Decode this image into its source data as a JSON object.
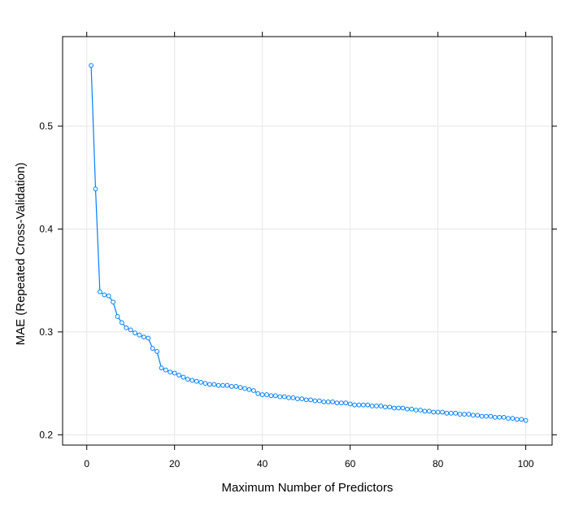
{
  "chart_data": {
    "type": "line",
    "title": "",
    "xlabel": "Maximum Number of Predictors",
    "ylabel": "MAE (Repeated Cross-Validation)",
    "xlim": [
      -5.5,
      106
    ],
    "ylim": [
      0.19,
      0.587
    ],
    "x_ticks": [
      0,
      20,
      40,
      60,
      80,
      100
    ],
    "x_tick_labels": [
      "0",
      "20",
      "40",
      "60",
      "80",
      "100"
    ],
    "y_ticks": [
      0.2,
      0.3,
      0.4,
      0.5
    ],
    "y_tick_labels": [
      "0.2",
      "0.3",
      "0.4",
      "0.5"
    ],
    "grid": true,
    "marker": "open-circle",
    "colors": {
      "line": "#0080ff",
      "marker": "#0080ff",
      "grid": "#e6e6e6",
      "frame": "#000000"
    },
    "series": [
      {
        "x": [
          1,
          2,
          3,
          4,
          5,
          6,
          7,
          8,
          9,
          10,
          11,
          12,
          13,
          14,
          15,
          16,
          17,
          18,
          19,
          20,
          21,
          22,
          23,
          24,
          25,
          26,
          27,
          28,
          29,
          30,
          31,
          32,
          33,
          34,
          35,
          36,
          37,
          38,
          39,
          40,
          41,
          42,
          43,
          44,
          45,
          46,
          47,
          48,
          49,
          50,
          51,
          52,
          53,
          54,
          55,
          56,
          57,
          58,
          59,
          60,
          61,
          62,
          63,
          64,
          65,
          66,
          67,
          68,
          69,
          70,
          71,
          72,
          73,
          74,
          75,
          76,
          77,
          78,
          79,
          80,
          81,
          82,
          83,
          84,
          85,
          86,
          87,
          88,
          89,
          90,
          91,
          92,
          93,
          94,
          95,
          96,
          97,
          98,
          99,
          100
        ],
        "values": [
          0.559,
          0.439,
          0.339,
          0.336,
          0.335,
          0.329,
          0.315,
          0.309,
          0.304,
          0.302,
          0.299,
          0.297,
          0.295,
          0.294,
          0.284,
          0.281,
          0.265,
          0.263,
          0.261,
          0.26,
          0.258,
          0.256,
          0.254,
          0.253,
          0.252,
          0.251,
          0.25,
          0.249,
          0.249,
          0.248,
          0.248,
          0.248,
          0.247,
          0.247,
          0.246,
          0.245,
          0.244,
          0.243,
          0.24,
          0.239,
          0.239,
          0.238,
          0.238,
          0.237,
          0.237,
          0.236,
          0.236,
          0.235,
          0.235,
          0.234,
          0.234,
          0.233,
          0.233,
          0.232,
          0.232,
          0.232,
          0.231,
          0.231,
          0.231,
          0.23,
          0.229,
          0.229,
          0.229,
          0.229,
          0.228,
          0.228,
          0.228,
          0.227,
          0.227,
          0.226,
          0.226,
          0.226,
          0.225,
          0.225,
          0.224,
          0.224,
          0.223,
          0.223,
          0.222,
          0.222,
          0.222,
          0.221,
          0.221,
          0.221,
          0.22,
          0.22,
          0.22,
          0.219,
          0.219,
          0.218,
          0.218,
          0.218,
          0.217,
          0.217,
          0.217,
          0.216,
          0.216,
          0.215,
          0.215,
          0.214
        ]
      }
    ]
  }
}
